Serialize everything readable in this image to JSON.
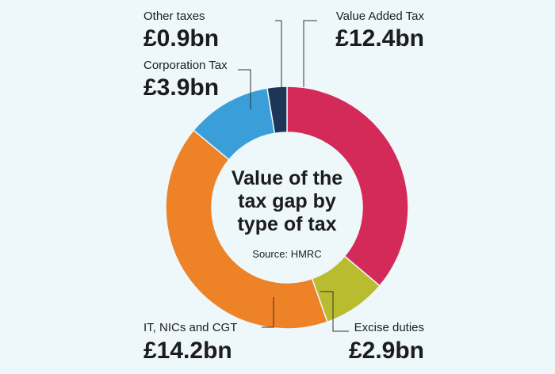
{
  "chart_data": {
    "type": "pie",
    "title_lines": [
      "Value of the",
      "tax gap by",
      "type of tax"
    ],
    "source": "Source: HMRC",
    "categories": [
      "Value Added Tax",
      "Excise duties",
      "IT, NICs and CGT",
      "Corporation Tax",
      "Other taxes"
    ],
    "values": [
      12.4,
      2.9,
      14.2,
      3.9,
      0.9
    ],
    "value_labels": [
      "£12.4bn",
      "£2.9bn",
      "£14.2bn",
      "£3.9bn",
      "£0.9bn"
    ],
    "colors": [
      "#d42a5a",
      "#b9bc2e",
      "#ee8227",
      "#3a9fd9",
      "#1d3557"
    ]
  }
}
